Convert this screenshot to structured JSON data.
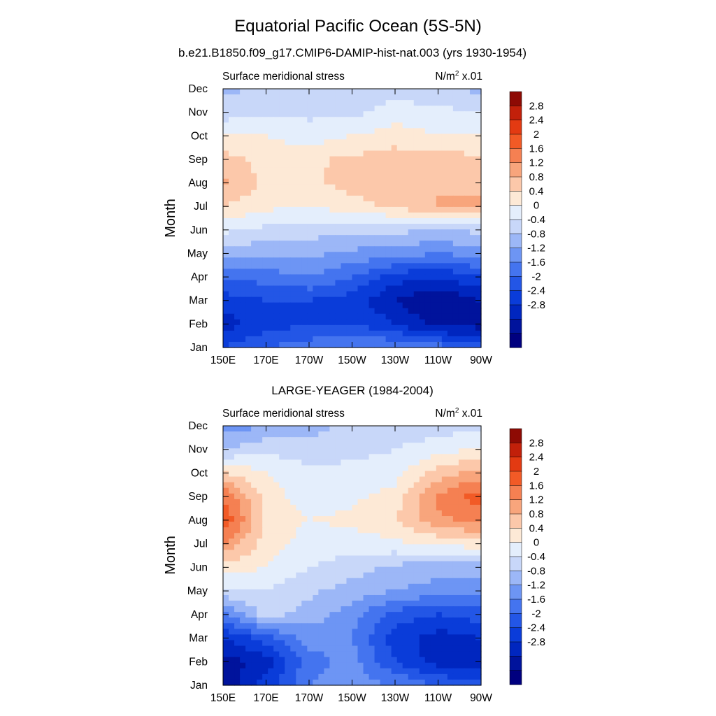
{
  "figure": {
    "title": "Equatorial Pacific Ocean (5S-5N)"
  },
  "colorbar": {
    "levels": [
      -2.8,
      -2.4,
      -2,
      -1.6,
      -1.2,
      -0.8,
      -0.4,
      0,
      0.4,
      0.8,
      1.2,
      1.6,
      2,
      2.4,
      2.8
    ],
    "labels": [
      "2.8",
      "2.4",
      "2",
      "1.6",
      "1.2",
      "0.8",
      "0.4",
      "0",
      "-0.4",
      "-0.8",
      "-1.2",
      "-1.6",
      "-2",
      "-2.4",
      "-2.8"
    ],
    "colors": [
      "#00007f",
      "#00139c",
      "#0026bf",
      "#0a3cd9",
      "#2356e6",
      "#4474ef",
      "#6d95f4",
      "#9cb7f7",
      "#c8d7f9",
      "#e4eefc",
      "#fde9d6",
      "#fcc8aa",
      "#f8a57c",
      "#f58052",
      "#f25a26",
      "#e33a12",
      "#c2200a",
      "#8e0a04"
    ]
  },
  "chart_data": [
    {
      "type": "heatmap",
      "title": "b.e21.B1850.f09_g17.CMIP6-DAMIP-hist-nat.003 (yrs 1930-1954)",
      "left_label": "Surface meridional stress",
      "units_prefix": "N/m",
      "units_sup": "2",
      "units_suffix": " x.01",
      "ylabel": "Month",
      "x_ticks": [
        "150E",
        "170E",
        "170W",
        "150W",
        "130W",
        "110W",
        "90W"
      ],
      "y_ticks": [
        "Jan",
        "Feb",
        "Mar",
        "Apr",
        "May",
        "Jun",
        "Jul",
        "Aug",
        "Sep",
        "Oct",
        "Nov",
        "Dec"
      ],
      "x": [
        150,
        170,
        190,
        210,
        230,
        250,
        270
      ],
      "y": [
        "Jan",
        "Feb",
        "Mar",
        "Apr",
        "May",
        "Jun",
        "Jul",
        "Aug",
        "Sep",
        "Oct",
        "Nov",
        "Dec"
      ],
      "z": [
        [
          -1.6,
          -1.2,
          -1.0,
          -0.8,
          -0.8,
          -1.0,
          -1.4
        ],
        [
          -2.2,
          -1.8,
          -1.6,
          -1.6,
          -2.0,
          -2.6,
          -2.6
        ],
        [
          -1.8,
          -1.6,
          -1.6,
          -1.8,
          -2.4,
          -2.8,
          -2.4
        ],
        [
          -1.2,
          -1.0,
          -0.8,
          -1.2,
          -1.8,
          -2.0,
          -1.6
        ],
        [
          -0.2,
          -0.3,
          -0.3,
          -0.5,
          -0.6,
          -0.8,
          -0.6
        ],
        [
          0.5,
          0.3,
          0.2,
          0.1,
          0.1,
          0.0,
          0.1
        ],
        [
          1.2,
          0.9,
          0.8,
          1.0,
          1.3,
          1.6,
          1.7
        ],
        [
          1.7,
          1.1,
          1.1,
          1.4,
          1.5,
          1.6,
          1.5
        ],
        [
          1.4,
          1.0,
          1.1,
          1.3,
          1.4,
          1.4,
          1.3
        ],
        [
          0.8,
          0.8,
          0.6,
          0.8,
          1.0,
          0.8,
          0.8
        ],
        [
          0.2,
          0.3,
          0.3,
          0.3,
          0.6,
          0.5,
          0.4
        ],
        [
          -0.1,
          0.1,
          0.1,
          0.1,
          0.2,
          0.1,
          -0.1
        ]
      ]
    },
    {
      "type": "heatmap",
      "title": "LARGE-YEAGER (1984-2004)",
      "left_label": "Surface meridional stress",
      "units_prefix": "N/m",
      "units_sup": "2",
      "units_suffix": " x.01",
      "ylabel": "Month",
      "x_ticks": [
        "150E",
        "170E",
        "170W",
        "150W",
        "130W",
        "110W",
        "90W"
      ],
      "y_ticks": [
        "Jan",
        "Feb",
        "Mar",
        "Apr",
        "May",
        "Jun",
        "Jul",
        "Aug",
        "Sep",
        "Oct",
        "Nov",
        "Dec"
      ],
      "x": [
        150,
        170,
        190,
        210,
        230,
        250,
        270
      ],
      "y": [
        "Jan",
        "Feb",
        "Mar",
        "Apr",
        "May",
        "Jun",
        "Jul",
        "Aug",
        "Sep",
        "Oct",
        "Nov",
        "Dec"
      ],
      "z": [
        [
          -2.8,
          -1.8,
          -0.8,
          -0.6,
          -0.8,
          -1.2,
          -1.4
        ],
        [
          -2.6,
          -2.2,
          -1.0,
          -0.6,
          -1.6,
          -2.2,
          -2.4
        ],
        [
          -2.0,
          -1.4,
          -0.6,
          -0.8,
          -1.8,
          -2.2,
          -2.0
        ],
        [
          -1.0,
          0.2,
          -0.2,
          -0.6,
          -1.4,
          -1.6,
          -1.4
        ],
        [
          0.3,
          0.4,
          0.1,
          -0.2,
          -0.4,
          -0.6,
          -0.6
        ],
        [
          1.0,
          0.8,
          0.4,
          0.2,
          -0.1,
          -0.2,
          -0.2
        ],
        [
          2.0,
          1.0,
          0.6,
          0.6,
          0.7,
          0.9,
          1.0
        ],
        [
          2.8,
          1.1,
          0.8,
          0.9,
          1.2,
          1.9,
          2.2
        ],
        [
          2.4,
          1.0,
          0.6,
          0.7,
          1.0,
          2.1,
          2.6
        ],
        [
          1.2,
          0.8,
          0.5,
          0.5,
          0.6,
          1.4,
          1.8
        ],
        [
          0.0,
          0.3,
          0.2,
          0.3,
          0.4,
          0.6,
          0.9
        ],
        [
          -0.6,
          -0.4,
          -0.2,
          0.2,
          0.2,
          0.2,
          0.3
        ]
      ]
    }
  ]
}
